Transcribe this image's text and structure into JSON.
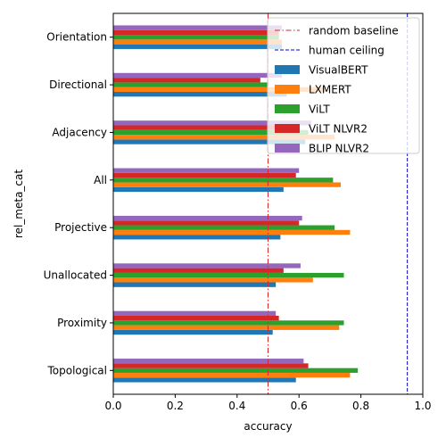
{
  "chart_data": {
    "type": "bar",
    "orientation": "horizontal",
    "xlabel": "accuracy",
    "ylabel": "rel_meta_cat",
    "xlim": [
      0,
      1.0
    ],
    "xticks": [
      0.0,
      0.2,
      0.4,
      0.6,
      0.8,
      1.0
    ],
    "xtick_labels": [
      "0.0",
      "0.2",
      "0.4",
      "0.6",
      "0.8",
      "1.0"
    ],
    "categories": [
      "Topological",
      "Proximity",
      "Unallocated",
      "Projective",
      "All",
      "Adjacency",
      "Directional",
      "Orientation"
    ],
    "series": [
      {
        "name": "VisualBERT",
        "color": "#1f77b4",
        "values": [
          0.59,
          0.515,
          0.525,
          0.54,
          0.55,
          0.62,
          0.56,
          0.545
        ]
      },
      {
        "name": "LXMERT",
        "color": "#ff7f0e",
        "values": [
          0.765,
          0.73,
          0.645,
          0.765,
          0.735,
          0.715,
          0.685,
          0.545
        ]
      },
      {
        "name": "ViLT",
        "color": "#2ca02c",
        "values": [
          0.79,
          0.745,
          0.745,
          0.715,
          0.71,
          0.63,
          0.5,
          0.535
        ]
      },
      {
        "name": "ViLT NLVR2",
        "color": "#d62728",
        "values": [
          0.63,
          0.535,
          0.55,
          0.6,
          0.59,
          0.6,
          0.475,
          0.535
        ]
      },
      {
        "name": "BLIP NLVR2",
        "color": "#9467bd",
        "values": [
          0.615,
          0.525,
          0.605,
          0.61,
          0.6,
          0.64,
          0.545,
          0.545
        ]
      }
    ],
    "reference_lines": [
      {
        "name": "random baseline",
        "value": 0.5,
        "color": "#d62728",
        "style": "dashdot"
      },
      {
        "name": "human ceiling",
        "value": 0.95,
        "color": "#0000cc",
        "style": "dashed"
      }
    ],
    "legend_position": "top-right"
  }
}
